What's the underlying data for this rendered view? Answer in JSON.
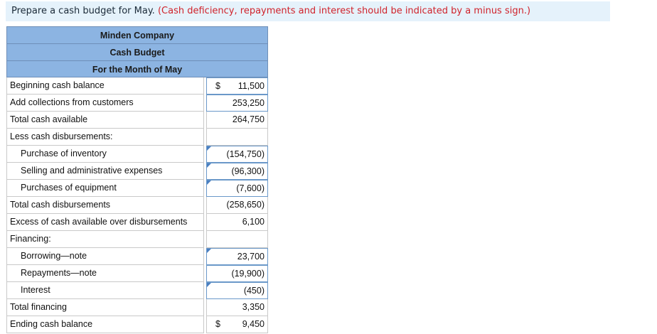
{
  "instruction": {
    "prefix": "Prepare a cash budget for May.",
    "note": "(Cash deficiency, repayments and interest should be indicated by a minus sign.)"
  },
  "header": {
    "company": "Minden Company",
    "title": "Cash Budget",
    "period": "For the Month of May"
  },
  "rows": [
    {
      "label": "Beginning cash balance",
      "dollar": "$",
      "value": "11,500"
    },
    {
      "label": "Add collections from customers",
      "dollar": "",
      "value": "253,250"
    },
    {
      "label": "Total cash available",
      "dollar": "",
      "value": "264,750"
    },
    {
      "label": "Less cash disbursements:",
      "dollar": "",
      "value": ""
    },
    {
      "label": "Purchase of inventory",
      "dollar": "",
      "value": "(154,750)"
    },
    {
      "label": "Selling and administrative expenses",
      "dollar": "",
      "value": "(96,300)"
    },
    {
      "label": "Purchases of equipment",
      "dollar": "",
      "value": "(7,600)"
    },
    {
      "label": "Total cash disbursements",
      "dollar": "",
      "value": "(258,650)"
    },
    {
      "label": "Excess of cash available over disbursements",
      "dollar": "",
      "value": "6,100"
    },
    {
      "label": "Financing:",
      "dollar": "",
      "value": ""
    },
    {
      "label": "Borrowing—note",
      "dollar": "",
      "value": "23,700"
    },
    {
      "label": "Repayments—note",
      "dollar": "",
      "value": "(19,900)"
    },
    {
      "label": "Interest",
      "dollar": "",
      "value": "(450)"
    },
    {
      "label": "Total financing",
      "dollar": "",
      "value": "3,350"
    },
    {
      "label": "Ending cash balance",
      "dollar": "$",
      "value": "9,450"
    }
  ]
}
